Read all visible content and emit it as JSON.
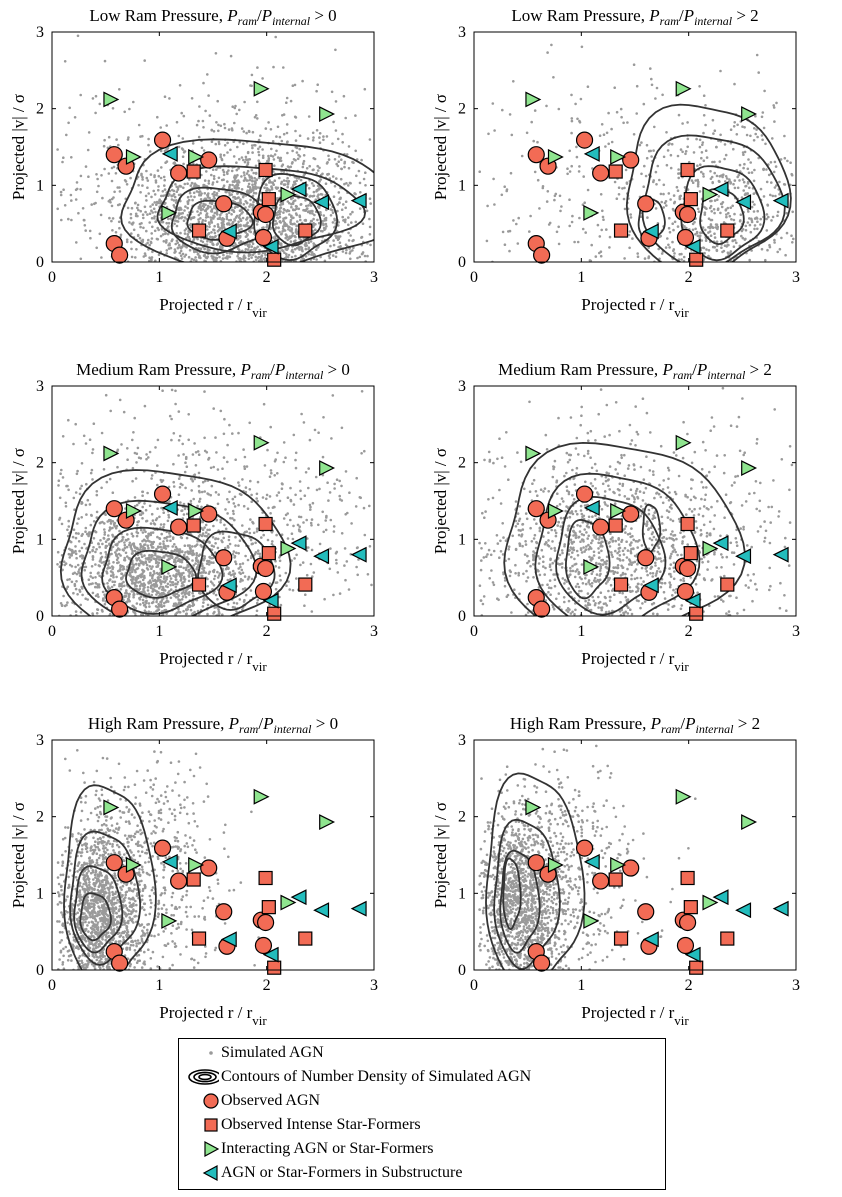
{
  "colors": {
    "simulated": "#9a9a9a",
    "contour": "#333333",
    "observed_agn": "#f26b55",
    "star_former": "#f26b55",
    "interacting": "#8fe58f",
    "substructure": "#23bdbd"
  },
  "axes_common": {
    "xlabel": "Projected r / r",
    "xlabel_sub": "vir",
    "ylabel": "Projected |v| / σ",
    "xlim": [
      0,
      3
    ],
    "ylim": [
      0,
      3
    ],
    "xticks": [
      "0",
      "1",
      "2",
      "3"
    ],
    "yticks": [
      "0",
      "1",
      "2",
      "3"
    ]
  },
  "legend": [
    {
      "marker": "point",
      "label": "Simulated AGN"
    },
    {
      "marker": "contour",
      "label": "Contours of Number Density of Simulated AGN"
    },
    {
      "marker": "circle",
      "label": "Observed AGN"
    },
    {
      "marker": "square",
      "label": "Observed Intense Star-Formers"
    },
    {
      "marker": "triangle-right",
      "label": "Interacting AGN or Star-Formers"
    },
    {
      "marker": "triangle-left",
      "label": "AGN or Star-Formers in Substructure"
    }
  ],
  "chart_data": [
    {
      "type": "scatter",
      "title": "Low Ram Pressure, ",
      "title_ratio": "P_ram/P_internal > 0",
      "xlim": [
        0,
        3
      ],
      "ylim": [
        0,
        3
      ],
      "background_model": "low0"
    },
    {
      "type": "scatter",
      "title": "Low Ram Pressure, ",
      "title_ratio": "P_ram/P_internal > 2",
      "xlim": [
        0,
        3
      ],
      "ylim": [
        0,
        3
      ],
      "background_model": "low2"
    },
    {
      "type": "scatter",
      "title": "Medium Ram Pressure, ",
      "title_ratio": "P_ram/P_internal > 0",
      "xlim": [
        0,
        3
      ],
      "ylim": [
        0,
        3
      ],
      "background_model": "med0"
    },
    {
      "type": "scatter",
      "title": "Medium Ram Pressure, ",
      "title_ratio": "P_ram/P_internal > 2",
      "xlim": [
        0,
        3
      ],
      "ylim": [
        0,
        3
      ],
      "background_model": "med2"
    },
    {
      "type": "scatter",
      "title": "High Ram Pressure, ",
      "title_ratio": "P_ram/P_internal > 0",
      "xlim": [
        0,
        3
      ],
      "ylim": [
        0,
        3
      ],
      "background_model": "high0"
    },
    {
      "type": "scatter",
      "title": "High Ram Pressure, ",
      "title_ratio": "P_ram/P_internal > 2",
      "xlim": [
        0,
        3
      ],
      "ylim": [
        0,
        3
      ],
      "background_model": "high2"
    }
  ],
  "observed": {
    "observed_agn": [
      [
        0.58,
        1.4
      ],
      [
        0.69,
        1.25
      ],
      [
        1.03,
        1.59
      ],
      [
        1.18,
        1.16
      ],
      [
        1.46,
        1.33
      ],
      [
        1.6,
        0.76
      ],
      [
        1.63,
        0.31
      ],
      [
        1.95,
        0.65
      ],
      [
        1.97,
        0.32
      ],
      [
        1.99,
        0.62
      ],
      [
        0.58,
        0.24
      ],
      [
        0.63,
        0.09
      ]
    ],
    "star_formers": [
      [
        1.32,
        1.18
      ],
      [
        1.37,
        0.41
      ],
      [
        1.99,
        1.2
      ],
      [
        2.02,
        0.82
      ],
      [
        2.07,
        0.03
      ],
      [
        2.36,
        0.41
      ]
    ],
    "interacting": [
      [
        0.54,
        2.12
      ],
      [
        0.75,
        1.37
      ],
      [
        1.08,
        0.64
      ],
      [
        1.33,
        1.37
      ],
      [
        1.94,
        2.26
      ],
      [
        2.19,
        0.88
      ],
      [
        2.55,
        1.93
      ]
    ],
    "substructure": [
      [
        1.11,
        1.41
      ],
      [
        1.66,
        0.4
      ],
      [
        2.05,
        0.2
      ],
      [
        2.31,
        0.95
      ],
      [
        2.52,
        0.78
      ],
      [
        2.87,
        0.8
      ]
    ]
  }
}
